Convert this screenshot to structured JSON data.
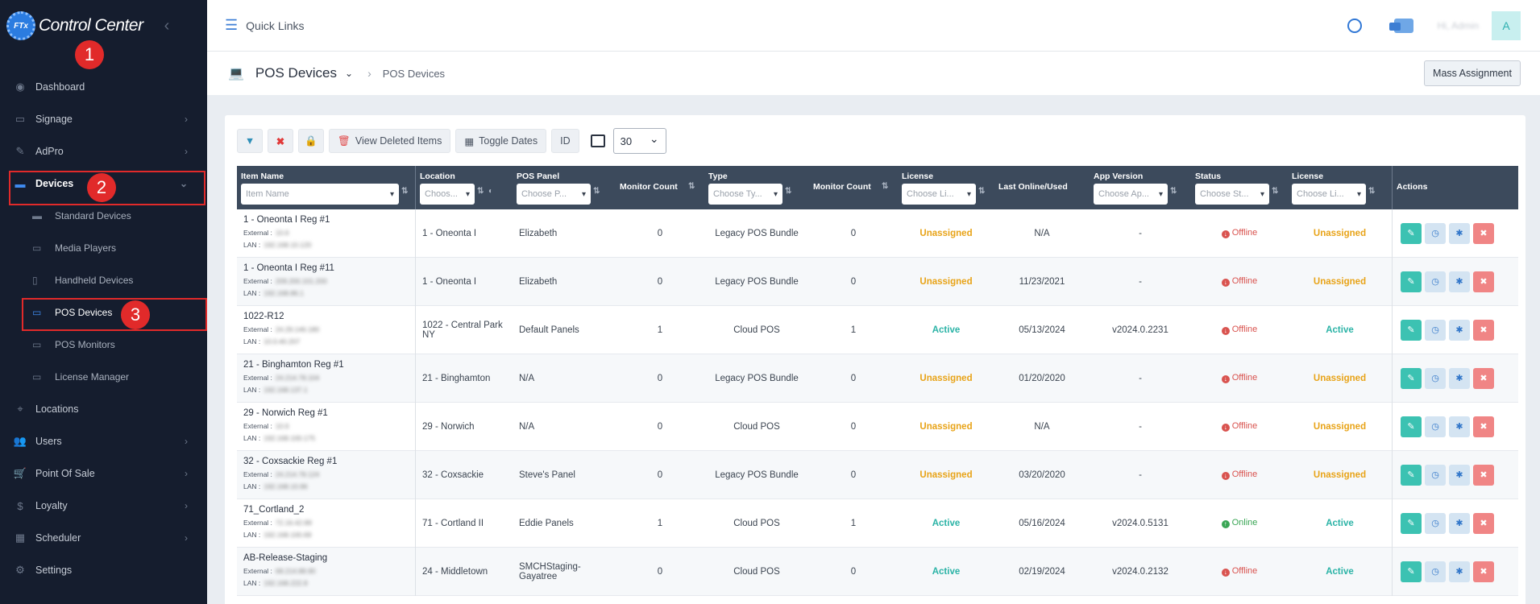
{
  "brand": {
    "name": "Control Center",
    "logo_text": "FTx"
  },
  "sidebar": {
    "items": [
      {
        "label": "Dashboard",
        "icon": "dashboard-icon",
        "chev": false
      },
      {
        "label": "Signage",
        "icon": "monitor-icon",
        "chev": true
      },
      {
        "label": "AdPro",
        "icon": "brush-icon",
        "chev": true
      },
      {
        "label": "Devices",
        "icon": "devices-icon",
        "chev": true
      }
    ],
    "sub_items": [
      {
        "label": "Standard Devices",
        "icon": "device-icon"
      },
      {
        "label": "Media Players",
        "icon": "media-player-icon"
      },
      {
        "label": "Handheld Devices",
        "icon": "handheld-icon"
      },
      {
        "label": "POS Devices",
        "icon": "laptop-icon"
      },
      {
        "label": "POS Monitors",
        "icon": "monitor-icon"
      },
      {
        "label": "License Manager",
        "icon": "license-icon"
      }
    ],
    "bottom_items": [
      {
        "label": "Locations",
        "icon": "location-icon",
        "chev": false
      },
      {
        "label": "Users",
        "icon": "users-icon",
        "chev": true
      },
      {
        "label": "Point Of Sale",
        "icon": "cart-icon",
        "chev": true
      },
      {
        "label": "Loyalty",
        "icon": "dollar-icon",
        "chev": true
      },
      {
        "label": "Scheduler",
        "icon": "calendar-icon",
        "chev": true
      },
      {
        "label": "Settings",
        "icon": "gear-icon",
        "chev": false
      }
    ]
  },
  "annotations": {
    "step1": "1",
    "step2": "2",
    "step3": "3"
  },
  "topbar": {
    "quick_links": "Quick Links",
    "user_name": "Hi, Admin",
    "avatar_letter": "A"
  },
  "page": {
    "title": "POS Devices",
    "breadcrumb": "POS Devices",
    "mass_assignment": "Mass Assignment"
  },
  "toolbar": {
    "view_deleted": "View Deleted Items",
    "toggle_dates": "Toggle Dates",
    "id": "ID",
    "page_size": "30"
  },
  "table": {
    "headers": {
      "item_name": "Item Name",
      "item_name_ph": "Item Name",
      "location": "Location",
      "location_ph": "Choos...",
      "pos_panel": "POS Panel",
      "pos_panel_ph": "Choose P...",
      "monitor_count": "Monitor Count",
      "type": "Type",
      "type_ph": "Choose Ty...",
      "monitor_count2": "Monitor Count",
      "license": "License",
      "license_ph": "Choose Li...",
      "last_online": "Last Online/Used",
      "app_version": "App Version",
      "app_version_ph": "Choose Ap...",
      "status": "Status",
      "status_ph": "Choose St...",
      "license2": "License",
      "license2_ph": "Choose Li...",
      "actions": "Actions"
    },
    "rows": [
      {
        "name": "1 - Oneonta I Reg #1",
        "external": "10.6",
        "lan": "192.168.10.120",
        "location": "1 - Oneonta I",
        "location2": "",
        "panel": "Elizabeth",
        "panel2": "",
        "mc": "0",
        "type": "Legacy POS Bundle",
        "mc2": "0",
        "license": "Unassigned",
        "last": "N/A",
        "app": "-",
        "status": "Offline",
        "license2": "Unassigned"
      },
      {
        "name": "1 - Oneonta I Reg #11",
        "external": "209.200.101.200",
        "lan": "192.168.86.1",
        "location": "1 - Oneonta I",
        "location2": "",
        "panel": "Elizabeth",
        "panel2": "",
        "mc": "0",
        "type": "Legacy POS Bundle",
        "mc2": "0",
        "license": "Unassigned",
        "last": "11/23/2021",
        "app": "-",
        "status": "Offline",
        "license2": "Unassigned"
      },
      {
        "name": "1022-R12",
        "external": "24.29.146.180",
        "lan": "10.0.40.207",
        "location": "1022 - Central Park",
        "location2": "NY",
        "panel": "Default Panels",
        "panel2": "",
        "mc": "1",
        "type": "Cloud POS",
        "mc2": "1",
        "license": "Active",
        "last": "05/13/2024",
        "app": "v2024.0.2231",
        "status": "Offline",
        "license2": "Active"
      },
      {
        "name": "21 - Binghamton Reg #1",
        "external": "24.214.78.104",
        "lan": "192.168.137.1",
        "location": "21 - Binghamton",
        "location2": "",
        "panel": "N/A",
        "panel2": "",
        "mc": "0",
        "type": "Legacy POS Bundle",
        "mc2": "0",
        "license": "Unassigned",
        "last": "01/20/2020",
        "app": "-",
        "status": "Offline",
        "license2": "Unassigned"
      },
      {
        "name": "29 - Norwich Reg #1",
        "external": "10.6",
        "lan": "192.168.100.175",
        "location": "29 - Norwich",
        "location2": "",
        "panel": "N/A",
        "panel2": "",
        "mc": "0",
        "type": "Cloud POS",
        "mc2": "0",
        "license": "Unassigned",
        "last": "N/A",
        "app": "-",
        "status": "Offline",
        "license2": "Unassigned"
      },
      {
        "name": "32 - Coxsackie Reg #1",
        "external": "24.214.78.124",
        "lan": "192.168.10.96",
        "location": "32 - Coxsackie",
        "location2": "",
        "panel": "Steve's Panel",
        "panel2": "",
        "mc": "0",
        "type": "Legacy POS Bundle",
        "mc2": "0",
        "license": "Unassigned",
        "last": "03/20/2020",
        "app": "-",
        "status": "Offline",
        "license2": "Unassigned"
      },
      {
        "name": "71_Cortland_2",
        "external": "72.16.42.89",
        "lan": "192.168.100.69",
        "location": "71 - Cortland II",
        "location2": "",
        "panel": "Eddie Panels",
        "panel2": "",
        "mc": "1",
        "type": "Cloud POS",
        "mc2": "1",
        "license": "Active",
        "last": "05/16/2024",
        "app": "v2024.0.5131",
        "status": "Online",
        "license2": "Active"
      },
      {
        "name": "AB-Release-Staging",
        "external": "68.214.88.90",
        "lan": "192.168.222.8",
        "location": "24 - Middletown",
        "location2": "",
        "panel": "SMCHStaging-",
        "panel2": "Gayatree",
        "mc": "0",
        "type": "Cloud POS",
        "mc2": "0",
        "license": "Active",
        "last": "02/19/2024",
        "app": "v2024.0.2132",
        "status": "Offline",
        "license2": "Active"
      }
    ],
    "labels": {
      "external": "External :",
      "lan": "LAN      :"
    }
  }
}
